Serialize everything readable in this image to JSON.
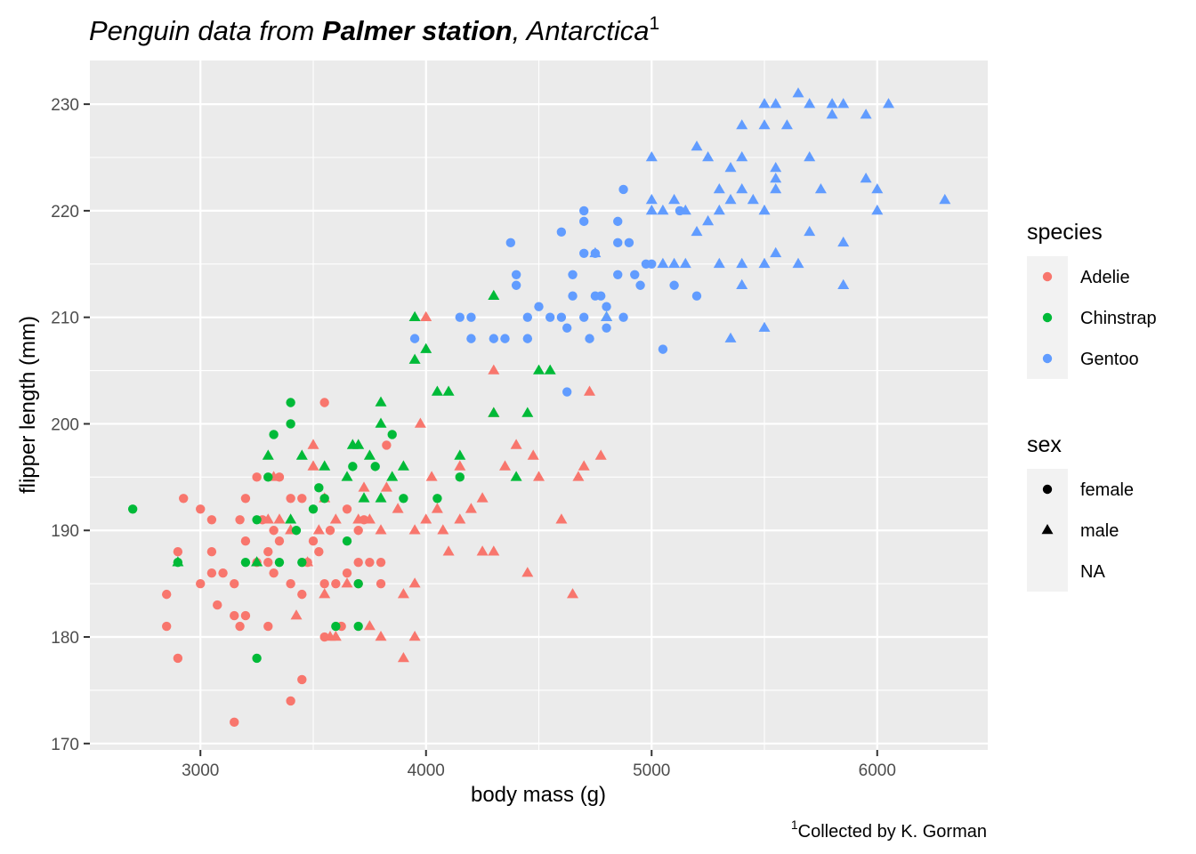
{
  "chart_data": {
    "type": "scatter",
    "title_parts": {
      "a": "Penguin data from ",
      "b": "Palmer station",
      "c": ", ",
      "d": "Antarctica",
      "sup": "1"
    },
    "xlabel": "body mass (g)",
    "ylabel": "flipper length (mm)",
    "caption_sup": "1",
    "caption": "Collected by K. Gorman",
    "xlim": [
      2510,
      6490
    ],
    "ylim": [
      169.4,
      234.1
    ],
    "x_ticks": [
      "3000",
      "4000",
      "5000",
      "6000"
    ],
    "y_ticks": [
      "170",
      "180",
      "190",
      "200",
      "210",
      "220",
      "230"
    ],
    "grid": true,
    "legend_position": "right",
    "colors": {
      "panel": "#ebebeb",
      "grid": "#ffffff",
      "xlabel": "#ff0000",
      "legend_key": "#f2f2f2",
      "sex_key": "#000000"
    },
    "legends": {
      "species": {
        "title": "species",
        "items": [
          {
            "label": "Adelie",
            "color": "#F8766D"
          },
          {
            "label": "Chinstrap",
            "color": "#00BA38"
          },
          {
            "label": "Gentoo",
            "color": "#619CFF"
          }
        ]
      },
      "sex": {
        "title": "sex",
        "items": [
          {
            "label": "female",
            "shape": "circle"
          },
          {
            "label": "male",
            "shape": "triangle"
          },
          {
            "label": "NA",
            "shape": "none"
          }
        ]
      }
    },
    "series": [
      {
        "name": "Adelie",
        "shape": "circle",
        "color": "#F8766D",
        "points": [
          [
            2850,
            184
          ],
          [
            2850,
            181
          ],
          [
            2900,
            178
          ],
          [
            2900,
            188
          ],
          [
            2925,
            193
          ],
          [
            3000,
            185
          ],
          [
            3000,
            192
          ],
          [
            3050,
            191
          ],
          [
            3050,
            188
          ],
          [
            3050,
            186
          ],
          [
            3075,
            183
          ],
          [
            3100,
            186
          ],
          [
            3150,
            172
          ],
          [
            3150,
            185
          ],
          [
            3150,
            182
          ],
          [
            3175,
            181
          ],
          [
            3175,
            191
          ],
          [
            3200,
            193
          ],
          [
            3200,
            189
          ],
          [
            3200,
            182
          ],
          [
            3250,
            195
          ],
          [
            3250,
            187
          ],
          [
            3275,
            191
          ],
          [
            3300,
            181
          ],
          [
            3300,
            188
          ],
          [
            3300,
            187
          ],
          [
            3325,
            186
          ],
          [
            3325,
            190
          ],
          [
            3350,
            195
          ],
          [
            3350,
            189
          ],
          [
            3400,
            174
          ],
          [
            3400,
            185
          ],
          [
            3400,
            193
          ],
          [
            3450,
            176
          ],
          [
            3450,
            184
          ],
          [
            3450,
            193
          ],
          [
            3475,
            187
          ],
          [
            3500,
            189
          ],
          [
            3525,
            188
          ],
          [
            3550,
            185
          ],
          [
            3550,
            202
          ],
          [
            3550,
            180
          ],
          [
            3575,
            190
          ],
          [
            3600,
            185
          ],
          [
            3625,
            181
          ],
          [
            3650,
            186
          ],
          [
            3650,
            192
          ],
          [
            3700,
            185
          ],
          [
            3700,
            187
          ],
          [
            3700,
            190
          ],
          [
            3725,
            191
          ],
          [
            3750,
            187
          ],
          [
            3800,
            185
          ],
          [
            3800,
            187
          ],
          [
            3825,
            198
          ]
        ]
      },
      {
        "name": "Adelie",
        "shape": "triangle",
        "color": "#F8766D",
        "points": [
          [
            3250,
            187
          ],
          [
            3300,
            191
          ],
          [
            3325,
            195
          ],
          [
            3350,
            191
          ],
          [
            3400,
            190
          ],
          [
            3425,
            182
          ],
          [
            3475,
            187
          ],
          [
            3500,
            198
          ],
          [
            3500,
            196
          ],
          [
            3525,
            190
          ],
          [
            3550,
            193
          ],
          [
            3550,
            184
          ],
          [
            3575,
            180
          ],
          [
            3600,
            191
          ],
          [
            3600,
            180
          ],
          [
            3650,
            185
          ],
          [
            3700,
            191
          ],
          [
            3725,
            194
          ],
          [
            3750,
            181
          ],
          [
            3750,
            191
          ],
          [
            3800,
            180
          ],
          [
            3800,
            190
          ],
          [
            3825,
            194
          ],
          [
            3875,
            192
          ],
          [
            3900,
            178
          ],
          [
            3900,
            184
          ],
          [
            3950,
            180
          ],
          [
            3950,
            185
          ],
          [
            3950,
            190
          ],
          [
            3975,
            200
          ],
          [
            4000,
            210
          ],
          [
            4000,
            191
          ],
          [
            4025,
            195
          ],
          [
            4050,
            192
          ],
          [
            4075,
            190
          ],
          [
            4100,
            188
          ],
          [
            4150,
            196
          ],
          [
            4150,
            191
          ],
          [
            4200,
            192
          ],
          [
            4250,
            193
          ],
          [
            4250,
            188
          ],
          [
            4300,
            205
          ],
          [
            4300,
            201
          ],
          [
            4300,
            188
          ],
          [
            4350,
            196
          ],
          [
            4400,
            198
          ],
          [
            4450,
            186
          ],
          [
            4475,
            197
          ],
          [
            4500,
            195
          ],
          [
            4600,
            191
          ],
          [
            4650,
            184
          ],
          [
            4675,
            195
          ],
          [
            4700,
            196
          ],
          [
            4725,
            203
          ],
          [
            4775,
            197
          ]
        ]
      },
      {
        "name": "Chinstrap",
        "shape": "circle",
        "color": "#00BA38",
        "points": [
          [
            2700,
            192
          ],
          [
            2900,
            187
          ],
          [
            3200,
            187
          ],
          [
            3250,
            178
          ],
          [
            3250,
            191
          ],
          [
            3300,
            195
          ],
          [
            3325,
            199
          ],
          [
            3350,
            187
          ],
          [
            3400,
            200
          ],
          [
            3400,
            202
          ],
          [
            3425,
            190
          ],
          [
            3450,
            187
          ],
          [
            3500,
            192
          ],
          [
            3525,
            194
          ],
          [
            3550,
            193
          ],
          [
            3600,
            181
          ],
          [
            3650,
            189
          ],
          [
            3675,
            196
          ],
          [
            3700,
            185
          ],
          [
            3700,
            181
          ],
          [
            3775,
            196
          ],
          [
            3850,
            199
          ],
          [
            3900,
            193
          ],
          [
            4050,
            193
          ],
          [
            4150,
            195
          ]
        ]
      },
      {
        "name": "Chinstrap",
        "shape": "triangle",
        "color": "#00BA38",
        "points": [
          [
            2900,
            187
          ],
          [
            3250,
            187
          ],
          [
            3300,
            197
          ],
          [
            3400,
            191
          ],
          [
            3450,
            197
          ],
          [
            3550,
            196
          ],
          [
            3650,
            195
          ],
          [
            3675,
            198
          ],
          [
            3700,
            198
          ],
          [
            3725,
            193
          ],
          [
            3750,
            197
          ],
          [
            3800,
            193
          ],
          [
            3800,
            200
          ],
          [
            3800,
            202
          ],
          [
            3850,
            195
          ],
          [
            3900,
            196
          ],
          [
            3950,
            206
          ],
          [
            3950,
            210
          ],
          [
            4000,
            207
          ],
          [
            4050,
            203
          ],
          [
            4100,
            203
          ],
          [
            4150,
            197
          ],
          [
            4300,
            212
          ],
          [
            4300,
            201
          ],
          [
            4400,
            195
          ],
          [
            4450,
            201
          ],
          [
            4500,
            205
          ],
          [
            4550,
            205
          ],
          [
            4800,
            210
          ]
        ]
      },
      {
        "name": "Gentoo",
        "shape": "circle",
        "color": "#619CFF",
        "points": [
          [
            3950,
            208
          ],
          [
            4150,
            210
          ],
          [
            4200,
            210
          ],
          [
            4200,
            208
          ],
          [
            4300,
            208
          ],
          [
            4350,
            208
          ],
          [
            4375,
            217
          ],
          [
            4400,
            214
          ],
          [
            4400,
            213
          ],
          [
            4450,
            208
          ],
          [
            4450,
            210
          ],
          [
            4500,
            211
          ],
          [
            4550,
            210
          ],
          [
            4600,
            218
          ],
          [
            4600,
            210
          ],
          [
            4625,
            203
          ],
          [
            4625,
            209
          ],
          [
            4650,
            214
          ],
          [
            4650,
            212
          ],
          [
            4700,
            210
          ],
          [
            4700,
            216
          ],
          [
            4700,
            219
          ],
          [
            4700,
            220
          ],
          [
            4725,
            208
          ],
          [
            4750,
            212
          ],
          [
            4750,
            216
          ],
          [
            4775,
            212
          ],
          [
            4800,
            209
          ],
          [
            4800,
            211
          ],
          [
            4850,
            217
          ],
          [
            4850,
            219
          ],
          [
            4850,
            214
          ],
          [
            4875,
            210
          ],
          [
            4875,
            222
          ],
          [
            4900,
            217
          ],
          [
            4925,
            214
          ],
          [
            4950,
            213
          ],
          [
            4975,
            215
          ],
          [
            5000,
            215
          ],
          [
            5050,
            207
          ],
          [
            5100,
            213
          ],
          [
            5125,
            220
          ],
          [
            5200,
            212
          ]
        ]
      },
      {
        "name": "Gentoo",
        "shape": "triangle",
        "color": "#619CFF",
        "points": [
          [
            4750,
            216
          ],
          [
            4800,
            210
          ],
          [
            5000,
            225
          ],
          [
            5000,
            221
          ],
          [
            5000,
            220
          ],
          [
            5050,
            215
          ],
          [
            5050,
            220
          ],
          [
            5100,
            215
          ],
          [
            5100,
            221
          ],
          [
            5150,
            215
          ],
          [
            5150,
            220
          ],
          [
            5200,
            226
          ],
          [
            5200,
            218
          ],
          [
            5250,
            225
          ],
          [
            5250,
            219
          ],
          [
            5300,
            220
          ],
          [
            5300,
            222
          ],
          [
            5300,
            215
          ],
          [
            5350,
            224
          ],
          [
            5350,
            221
          ],
          [
            5350,
            208
          ],
          [
            5400,
            228
          ],
          [
            5400,
            225
          ],
          [
            5400,
            222
          ],
          [
            5400,
            215
          ],
          [
            5400,
            213
          ],
          [
            5450,
            221
          ],
          [
            5500,
            230
          ],
          [
            5500,
            228
          ],
          [
            5500,
            220
          ],
          [
            5500,
            215
          ],
          [
            5500,
            209
          ],
          [
            5550,
            230
          ],
          [
            5550,
            224
          ],
          [
            5550,
            223
          ],
          [
            5550,
            222
          ],
          [
            5550,
            216
          ],
          [
            5600,
            228
          ],
          [
            5650,
            231
          ],
          [
            5650,
            215
          ],
          [
            5700,
            230
          ],
          [
            5700,
            225
          ],
          [
            5700,
            218
          ],
          [
            5750,
            222
          ],
          [
            5800,
            230
          ],
          [
            5800,
            229
          ],
          [
            5850,
            230
          ],
          [
            5850,
            217
          ],
          [
            5850,
            213
          ],
          [
            5950,
            229
          ],
          [
            5950,
            223
          ],
          [
            6000,
            222
          ],
          [
            6000,
            220
          ],
          [
            6050,
            230
          ],
          [
            6300,
            221
          ]
        ]
      }
    ]
  }
}
